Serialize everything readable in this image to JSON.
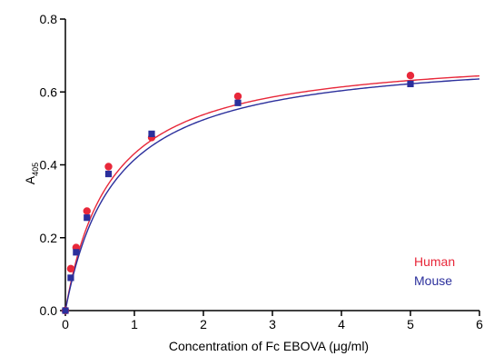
{
  "chart_data": {
    "type": "scatter",
    "title": "",
    "xlabel": "Concentration of Fc EBOVA (μg/ml)",
    "ylabel": "A",
    "ylabel_subscript": "405",
    "xlim": [
      0,
      6
    ],
    "ylim": [
      0,
      0.8
    ],
    "x_ticks": [
      0,
      1,
      2,
      3,
      4,
      5,
      6
    ],
    "x_tick_labels": [
      "0",
      "1",
      "2",
      "3",
      "4",
      "5",
      "6"
    ],
    "y_ticks": [
      0,
      0.2,
      0.4,
      0.6,
      0.8
    ],
    "y_tick_labels": [
      "0.0",
      "0.2",
      "0.4",
      "0.6",
      "0.8"
    ],
    "grid": false,
    "legend_position": "bottom-right",
    "series": [
      {
        "name": "Human",
        "color": "#e8283a",
        "marker": "circle",
        "x": [
          0,
          0.078,
          0.156,
          0.3125,
          0.625,
          1.25,
          2.5,
          5
        ],
        "y": [
          0.0,
          0.115,
          0.173,
          0.273,
          0.395,
          0.475,
          0.588,
          0.645
        ],
        "fit": {
          "model": "one-site-binding",
          "bmax": 0.715,
          "kd": 0.66
        }
      },
      {
        "name": "Mouse",
        "color": "#2b2f9c",
        "marker": "square",
        "x": [
          0,
          0.078,
          0.156,
          0.3125,
          0.625,
          1.25,
          2.5,
          5
        ],
        "y": [
          0.0,
          0.09,
          0.16,
          0.255,
          0.375,
          0.485,
          0.57,
          0.622
        ],
        "fit": {
          "model": "one-site-binding",
          "bmax": 0.712,
          "kd": 0.72
        }
      }
    ]
  }
}
